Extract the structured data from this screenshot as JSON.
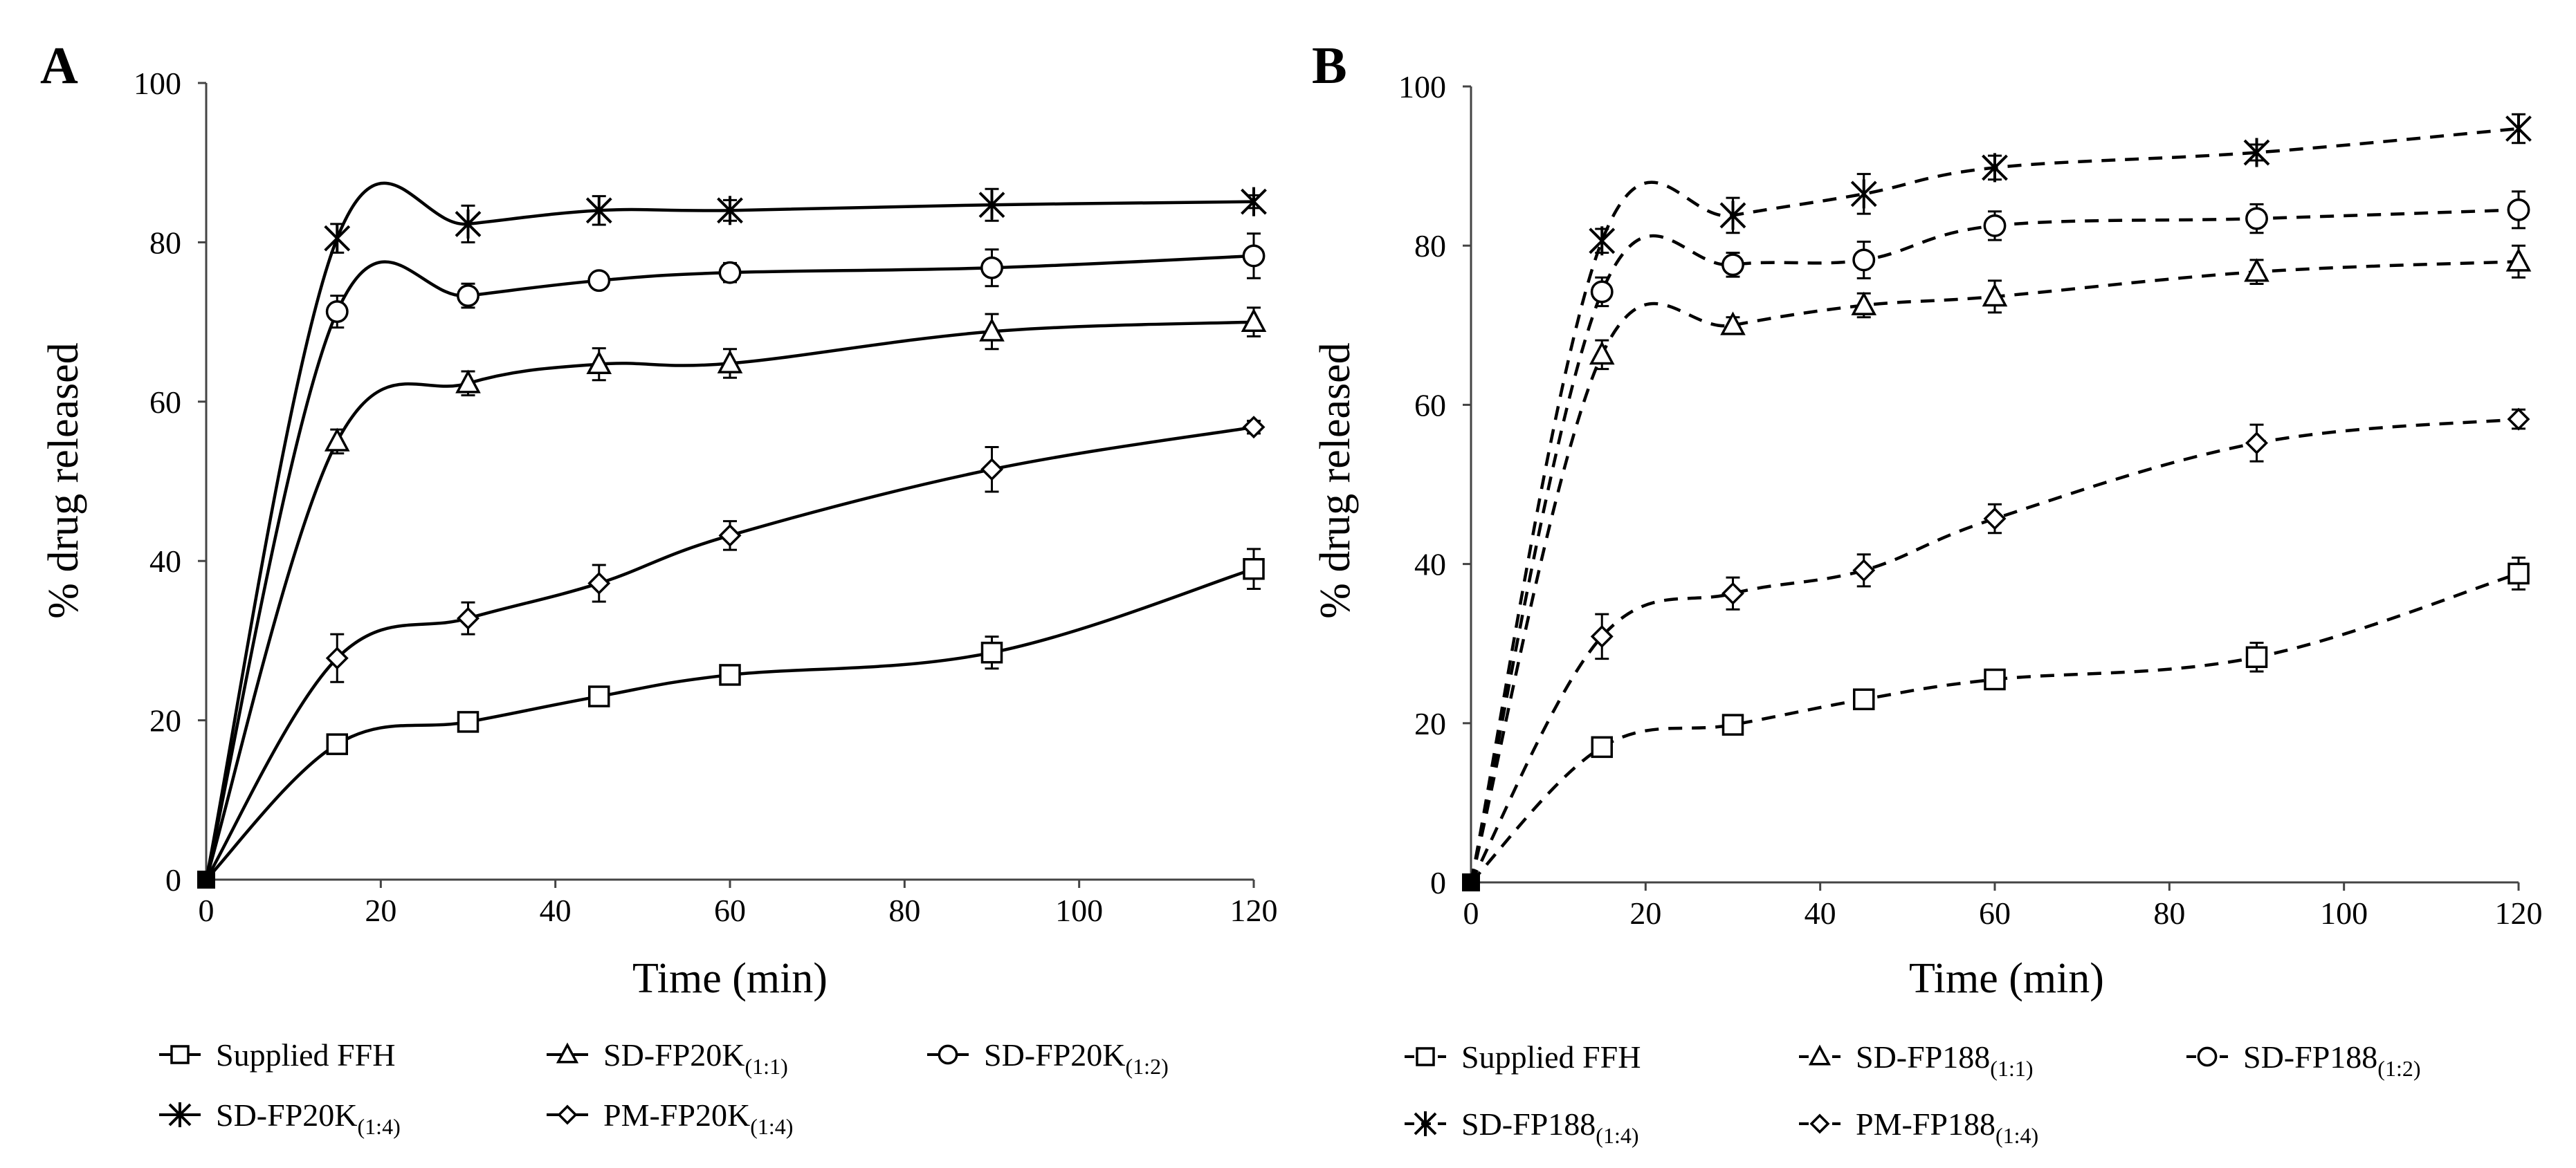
{
  "figure": {
    "panels": [
      "A",
      "B"
    ]
  },
  "chart_data": [
    {
      "panel": "A",
      "type": "line",
      "line_style": "solid",
      "title": "",
      "xlabel": "Time (min)",
      "ylabel": "% drug  released",
      "xlim": [
        0,
        120
      ],
      "ylim": [
        0,
        100
      ],
      "xticks": [
        "0",
        "20",
        "40",
        "60",
        "80",
        "100",
        "120"
      ],
      "yticks": [
        "0",
        "20",
        "40",
        "60",
        "80",
        "100"
      ],
      "x": [
        0,
        15,
        30,
        45,
        60,
        90,
        120
      ],
      "series": [
        {
          "key": "ffh",
          "name": "Supplied FFH",
          "sub": "",
          "marker": "square",
          "values": [
            0,
            17.0,
            19.8,
            23.0,
            25.7,
            28.5,
            39.0
          ],
          "errors": [
            0,
            1.0,
            1.2,
            1.0,
            1.0,
            2.0,
            2.5
          ]
        },
        {
          "key": "r11",
          "name": "SD-FP20K",
          "sub": "(1:1)",
          "marker": "triangle",
          "values": [
            0,
            55.0,
            62.3,
            64.7,
            64.8,
            68.8,
            70.0
          ],
          "errors": [
            0,
            1.5,
            1.5,
            2.0,
            1.8,
            2.2,
            1.8
          ]
        },
        {
          "key": "r12",
          "name": "SD-FP20K",
          "sub": "(1:2)",
          "marker": "circle",
          "values": [
            0,
            71.3,
            73.3,
            75.2,
            76.2,
            76.8,
            78.3
          ],
          "errors": [
            0,
            2.0,
            1.5,
            0.8,
            1.2,
            2.3,
            2.8
          ]
        },
        {
          "key": "r14",
          "name": "SD-FP20K",
          "sub": "(1:4)",
          "marker": "asterisk",
          "values": [
            0,
            80.5,
            82.3,
            84.0,
            84.0,
            84.7,
            85.1
          ],
          "errors": [
            0,
            1.8,
            2.3,
            1.8,
            1.3,
            2.0,
            0.8
          ]
        },
        {
          "key": "pm14",
          "name": "PM-FP20K",
          "sub": "(1:4)",
          "marker": "diamond",
          "values": [
            0,
            27.8,
            32.8,
            37.2,
            43.2,
            51.5,
            56.8
          ],
          "errors": [
            0,
            3.0,
            2.0,
            2.3,
            1.8,
            2.8,
            0.8
          ]
        }
      ]
    },
    {
      "panel": "B",
      "type": "line",
      "line_style": "dashed",
      "title": "",
      "xlabel": "Time (min)",
      "ylabel": "% drug  released",
      "xlim": [
        0,
        120
      ],
      "ylim": [
        0,
        100
      ],
      "xticks": [
        "0",
        "20",
        "40",
        "60",
        "80",
        "100",
        "120"
      ],
      "yticks": [
        "0",
        "20",
        "40",
        "60",
        "80",
        "100"
      ],
      "x": [
        0,
        15,
        30,
        45,
        60,
        90,
        120
      ],
      "series": [
        {
          "key": "ffh",
          "name": "Supplied FFH",
          "sub": "",
          "marker": "square",
          "values": [
            0,
            17.0,
            19.8,
            23.0,
            25.5,
            28.3,
            38.8
          ],
          "errors": [
            0,
            1.0,
            1.2,
            1.0,
            1.0,
            1.8,
            2.0
          ]
        },
        {
          "key": "r11",
          "name": "SD-FP188",
          "sub": "(1:1)",
          "marker": "triangle",
          "values": [
            0,
            66.3,
            70.0,
            72.5,
            73.6,
            76.7,
            78.0
          ],
          "errors": [
            0,
            1.8,
            1.0,
            1.5,
            2.0,
            1.5,
            2.0
          ]
        },
        {
          "key": "r12",
          "name": "SD-FP188",
          "sub": "(1:2)",
          "marker": "circle",
          "values": [
            0,
            74.2,
            77.6,
            78.2,
            82.5,
            83.4,
            84.5
          ],
          "errors": [
            0,
            1.8,
            1.5,
            2.3,
            1.8,
            1.8,
            2.3
          ]
        },
        {
          "key": "r14",
          "name": "SD-FP188",
          "sub": "(1:4)",
          "marker": "asterisk",
          "values": [
            0,
            80.6,
            83.8,
            86.5,
            89.8,
            91.7,
            94.7
          ],
          "errors": [
            0,
            1.5,
            2.2,
            2.5,
            1.5,
            1.0,
            1.8
          ]
        },
        {
          "key": "pm14",
          "name": "PM-FP188",
          "sub": "(1:4)",
          "marker": "diamond",
          "values": [
            0,
            30.9,
            36.3,
            39.2,
            45.7,
            55.2,
            58.2
          ],
          "errors": [
            0,
            2.8,
            2.0,
            2.0,
            1.8,
            2.3,
            1.2
          ]
        }
      ]
    }
  ]
}
